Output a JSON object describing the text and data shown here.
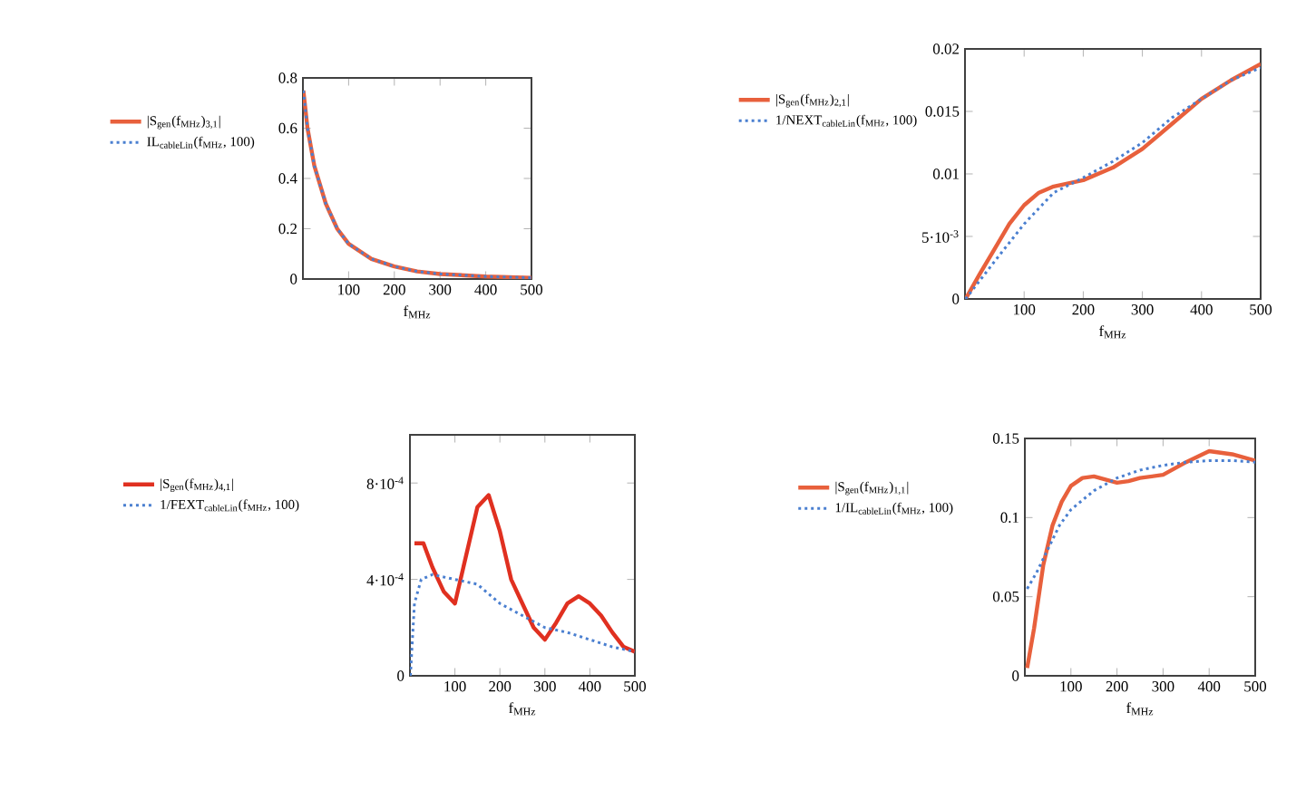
{
  "chart_data": [
    {
      "type": "line",
      "xlabel": "f$_{MHz}$",
      "xlim": [
        0,
        500
      ],
      "ylim": [
        0,
        0.8
      ],
      "xticks": [
        100,
        200,
        300,
        400,
        500
      ],
      "yticks": [
        0,
        0.2,
        0.4,
        0.6,
        0.8
      ],
      "legend": "left",
      "series": [
        {
          "name": "|S$_{gen}$(f$_{MHz}$)$_{3,1}$|",
          "color": "#e8603c",
          "line_style": "solid",
          "x": [
            1,
            10,
            25,
            50,
            75,
            100,
            150,
            200,
            250,
            300,
            400,
            500
          ],
          "values": [
            0.75,
            0.6,
            0.45,
            0.3,
            0.2,
            0.14,
            0.08,
            0.05,
            0.03,
            0.02,
            0.01,
            0.005
          ]
        },
        {
          "name": "IL$_{cableLin}$(f$_{MHz}$, 100)",
          "color": "#4a7fd0",
          "line_style": "dotted",
          "x": [
            1,
            10,
            25,
            50,
            75,
            100,
            150,
            200,
            250,
            300,
            400,
            500
          ],
          "values": [
            0.75,
            0.6,
            0.45,
            0.3,
            0.2,
            0.14,
            0.08,
            0.05,
            0.03,
            0.02,
            0.01,
            0.005
          ]
        }
      ]
    },
    {
      "type": "line",
      "xlabel": "f$_{MHz}$",
      "xlim": [
        0,
        500
      ],
      "ylim": [
        0,
        0.02
      ],
      "xticks": [
        100,
        200,
        300,
        400,
        500
      ],
      "yticks": [
        0,
        {
          "value": 0.005,
          "label": "5·10$^{-3}$"
        },
        0.01,
        0.015,
        0.02
      ],
      "legend": "left",
      "series": [
        {
          "name": "|S$_{gen}$(f$_{MHz}$)$_{2,1}$|",
          "color": "#e8603c",
          "line_style": "solid",
          "x": [
            1,
            25,
            50,
            75,
            100,
            125,
            150,
            200,
            250,
            300,
            350,
            400,
            450,
            500
          ],
          "values": [
            0,
            0.002,
            0.004,
            0.006,
            0.0075,
            0.0085,
            0.009,
            0.0095,
            0.0105,
            0.012,
            0.014,
            0.016,
            0.0175,
            0.0188
          ]
        },
        {
          "name": "1/NEXT$_{cableLin}$(f$_{MHz}$, 100)",
          "color": "#4a7fd0",
          "line_style": "dotted",
          "x": [
            1,
            50,
            100,
            150,
            200,
            250,
            300,
            350,
            400,
            450,
            500
          ],
          "values": [
            0,
            0.003,
            0.006,
            0.0085,
            0.0097,
            0.011,
            0.0125,
            0.0145,
            0.016,
            0.0175,
            0.0185
          ]
        }
      ]
    },
    {
      "type": "line",
      "xlabel": "f$_{MHz}$",
      "xlim": [
        0,
        500
      ],
      "ylim": [
        0,
        0.001
      ],
      "xticks": [
        100,
        200,
        300,
        400,
        500
      ],
      "yticks": [
        0,
        {
          "value": 0.0004,
          "label": "4·10$^{-4}$"
        },
        {
          "value": 0.0008,
          "label": "8·10$^{-4}$"
        }
      ],
      "legend": "left",
      "series": [
        {
          "name": "|S$_{gen}$(f$_{MHz}$)$_{4,1}$|",
          "color": "#e03020",
          "line_style": "solid",
          "x": [
            10,
            30,
            50,
            75,
            100,
            125,
            150,
            175,
            200,
            225,
            250,
            275,
            300,
            325,
            350,
            375,
            400,
            425,
            450,
            475,
            500
          ],
          "values": [
            0.00055,
            0.00055,
            0.00045,
            0.00035,
            0.0003,
            0.0005,
            0.0007,
            0.00075,
            0.0006,
            0.0004,
            0.0003,
            0.0002,
            0.00015,
            0.00022,
            0.0003,
            0.00033,
            0.0003,
            0.00025,
            0.00018,
            0.00012,
            0.0001
          ]
        },
        {
          "name": "1/FEXT$_{cableLin}$(f$_{MHz}$, 100)",
          "color": "#4a7fd0",
          "line_style": "dotted",
          "x": [
            1,
            10,
            25,
            50,
            100,
            150,
            200,
            250,
            300,
            350,
            400,
            450,
            500
          ],
          "values": [
            0,
            0.0003,
            0.0004,
            0.00042,
            0.0004,
            0.00038,
            0.0003,
            0.00025,
            0.0002,
            0.00018,
            0.00015,
            0.00012,
            0.0001
          ]
        }
      ]
    },
    {
      "type": "line",
      "xlabel": "f$_{MHz}$",
      "xlim": [
        0,
        500
      ],
      "ylim": [
        0,
        0.15
      ],
      "xticks": [
        100,
        200,
        300,
        400,
        500
      ],
      "yticks": [
        0,
        0.05,
        0.1,
        0.15
      ],
      "legend": "left",
      "series": [
        {
          "name": "|S$_{gen}$(f$_{MHz}$)$_{1,1}$|",
          "color": "#e8603c",
          "line_style": "solid",
          "x": [
            5,
            20,
            40,
            60,
            80,
            100,
            125,
            150,
            175,
            200,
            225,
            250,
            300,
            350,
            400,
            450,
            500
          ],
          "values": [
            0.005,
            0.03,
            0.07,
            0.095,
            0.11,
            0.12,
            0.125,
            0.126,
            0.124,
            0.122,
            0.123,
            0.125,
            0.127,
            0.135,
            0.142,
            0.14,
            0.136
          ]
        },
        {
          "name": "1/IL$_{cableLin}$(f$_{MHz}$, 100)",
          "color": "#4a7fd0",
          "line_style": "dotted",
          "x": [
            5,
            25,
            50,
            75,
            100,
            150,
            200,
            250,
            300,
            350,
            400,
            450,
            500
          ],
          "values": [
            0.055,
            0.065,
            0.08,
            0.095,
            0.105,
            0.117,
            0.125,
            0.13,
            0.133,
            0.135,
            0.136,
            0.136,
            0.135
          ]
        }
      ]
    }
  ]
}
